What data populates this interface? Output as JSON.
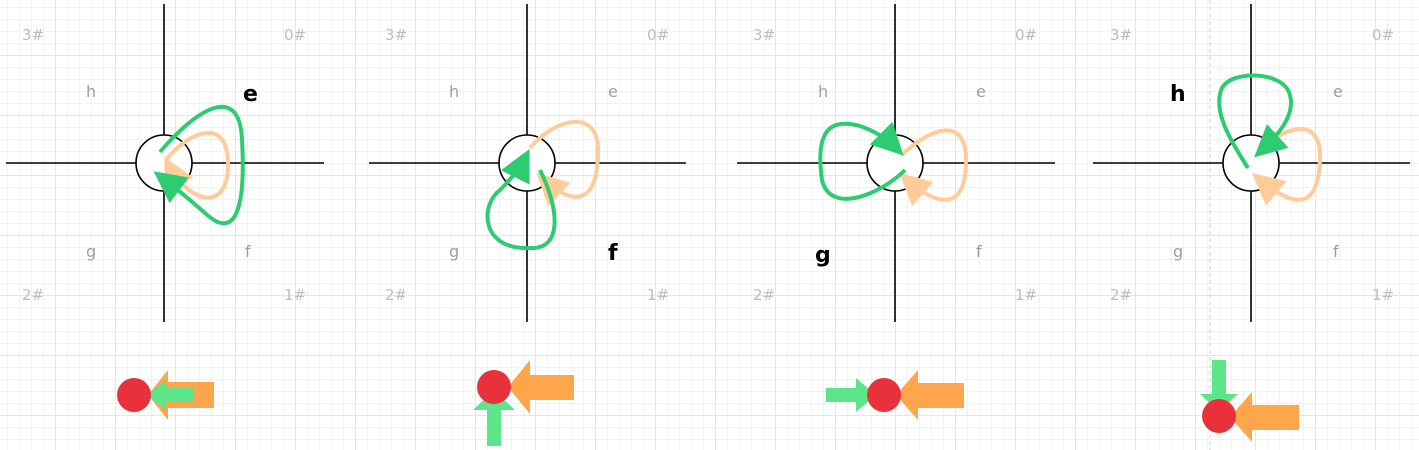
{
  "colors": {
    "green": "#2ecc71",
    "green_light": "#5de58a",
    "orange": "#ffa64d",
    "orange_light": "#ffcc99",
    "red": "#e8313a",
    "axis": "#000000",
    "label_muted": "#bdbdbd"
  },
  "panels": [
    {
      "quadrants": {
        "q0": "0#",
        "q1": "1#",
        "q2": "2#",
        "q3": "3#"
      },
      "directions": {
        "e": "e",
        "f": "f",
        "g": "g",
        "h": "h"
      },
      "active": "e"
    },
    {
      "quadrants": {
        "q0": "0#",
        "q1": "1#",
        "q2": "2#",
        "q3": "3#"
      },
      "directions": {
        "e": "e",
        "f": "f",
        "g": "g",
        "h": "h"
      },
      "active": "f"
    },
    {
      "quadrants": {
        "q0": "0#",
        "q1": "1#",
        "q2": "2#",
        "q3": "3#"
      },
      "directions": {
        "e": "e",
        "f": "f",
        "g": "g",
        "h": "h"
      },
      "active": "g"
    },
    {
      "quadrants": {
        "q0": "0#",
        "q1": "1#",
        "q2": "2#",
        "q3": "3#"
      },
      "directions": {
        "e": "e",
        "f": "f",
        "g": "g",
        "h": "h"
      },
      "active": "h"
    }
  ]
}
